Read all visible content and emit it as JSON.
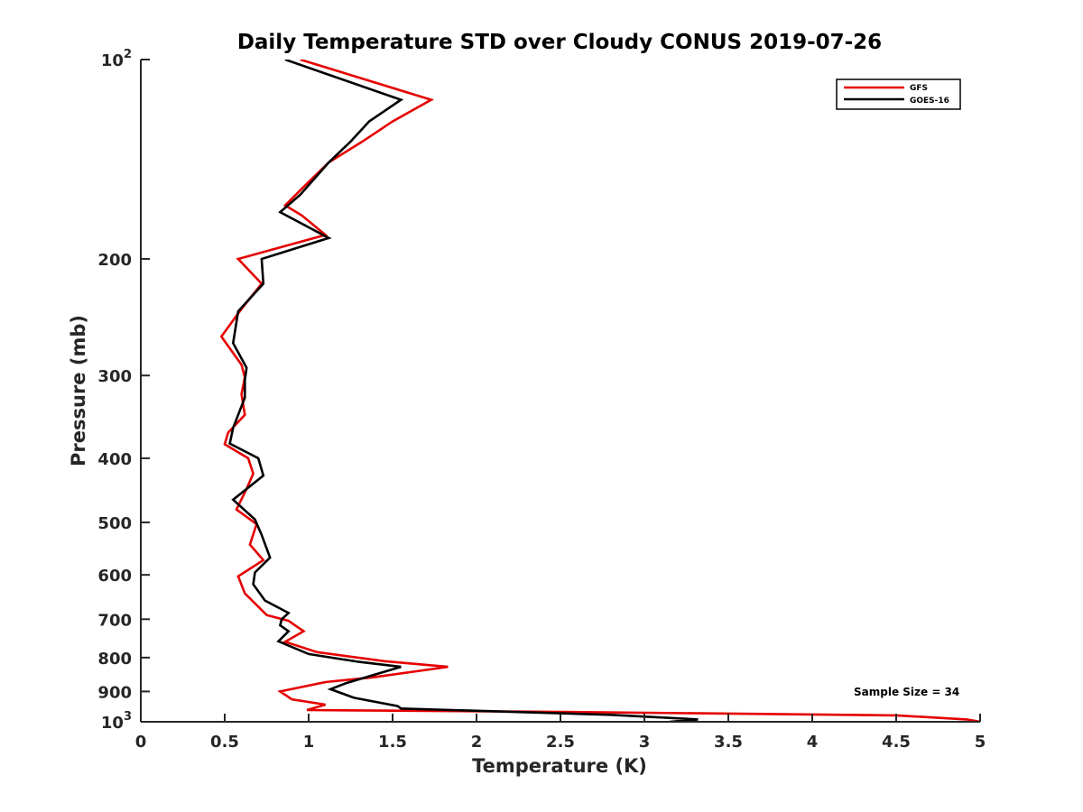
{
  "chart_data": {
    "type": "line",
    "title": "Daily Temperature STD over Cloudy CONUS 2019-07-26",
    "xlabel": "Temperature (K)",
    "ylabel": "Pressure (mb)",
    "xlim": [
      0,
      5
    ],
    "ylim": [
      100,
      1000
    ],
    "y_scale": "log",
    "y_reversed": true,
    "x_ticks": [
      0,
      0.5,
      1,
      1.5,
      2,
      2.5,
      3,
      3.5,
      4,
      4.5,
      5
    ],
    "x_tick_labels": [
      "0",
      "0.5",
      "1",
      "1.5",
      "2",
      "2.5",
      "3",
      "3.5",
      "4",
      "4.5",
      "5"
    ],
    "y_ticks": [
      100,
      200,
      300,
      400,
      500,
      600,
      700,
      800,
      900,
      1000
    ],
    "y_tick_labels": [
      {
        "base": "10",
        "exp": "2"
      },
      {
        "base": "200",
        "exp": ""
      },
      {
        "base": "300",
        "exp": ""
      },
      {
        "base": "400",
        "exp": ""
      },
      {
        "base": "500",
        "exp": ""
      },
      {
        "base": "600",
        "exp": ""
      },
      {
        "base": "700",
        "exp": ""
      },
      {
        "base": "800",
        "exp": ""
      },
      {
        "base": "900",
        "exp": ""
      },
      {
        "base": "10",
        "exp": "3"
      }
    ],
    "grid": false,
    "legend_position": "top-right",
    "annotation": "Sample Size = 34",
    "series": [
      {
        "name": "GFS",
        "color": "#e50000",
        "points": [
          [
            0.95,
            100
          ],
          [
            1.73,
            115
          ],
          [
            1.5,
            124
          ],
          [
            1.32,
            133
          ],
          [
            1.12,
            143
          ],
          [
            0.99,
            154
          ],
          [
            0.86,
            166
          ],
          [
            0.96,
            172
          ],
          [
            1.1,
            184
          ],
          [
            0.58,
            200
          ],
          [
            0.72,
            218
          ],
          [
            0.6,
            238
          ],
          [
            0.48,
            262
          ],
          [
            0.6,
            289
          ],
          [
            0.62,
            302
          ],
          [
            0.6,
            320
          ],
          [
            0.62,
            344
          ],
          [
            0.52,
            366
          ],
          [
            0.5,
            381
          ],
          [
            0.64,
            400
          ],
          [
            0.67,
            422
          ],
          [
            0.63,
            445
          ],
          [
            0.57,
            478
          ],
          [
            0.69,
            503
          ],
          [
            0.65,
            540
          ],
          [
            0.73,
            570
          ],
          [
            0.58,
            603
          ],
          [
            0.62,
            640
          ],
          [
            0.75,
            690
          ],
          [
            0.88,
            704
          ],
          [
            0.97,
            730
          ],
          [
            0.86,
            757
          ],
          [
            1.05,
            785
          ],
          [
            1.45,
            810
          ],
          [
            1.83,
            826
          ],
          [
            1.38,
            857
          ],
          [
            1.1,
            871
          ],
          [
            0.83,
            900
          ],
          [
            0.9,
            925
          ],
          [
            1.1,
            942
          ],
          [
            0.99,
            960
          ],
          [
            2.5,
            966
          ],
          [
            4.5,
            978
          ],
          [
            4.92,
            992
          ],
          [
            5.0,
            1000
          ]
        ]
      },
      {
        "name": "GOES-16",
        "color": "#000000",
        "points": [
          [
            0.86,
            100
          ],
          [
            1.55,
            115
          ],
          [
            1.36,
            124
          ],
          [
            1.25,
            133
          ],
          [
            1.12,
            143
          ],
          [
            0.95,
            160
          ],
          [
            0.83,
            170
          ],
          [
            1.12,
            186
          ],
          [
            0.72,
            200
          ],
          [
            0.73,
            218
          ],
          [
            0.58,
            240
          ],
          [
            0.55,
            268
          ],
          [
            0.63,
            292
          ],
          [
            0.62,
            305
          ],
          [
            0.62,
            324
          ],
          [
            0.55,
            360
          ],
          [
            0.53,
            380
          ],
          [
            0.7,
            400
          ],
          [
            0.73,
            425
          ],
          [
            0.55,
            462
          ],
          [
            0.68,
            495
          ],
          [
            0.72,
            522
          ],
          [
            0.77,
            565
          ],
          [
            0.68,
            595
          ],
          [
            0.67,
            620
          ],
          [
            0.74,
            656
          ],
          [
            0.88,
            685
          ],
          [
            0.84,
            700
          ],
          [
            0.83,
            715
          ],
          [
            0.88,
            730
          ],
          [
            0.82,
            756
          ],
          [
            1.0,
            790
          ],
          [
            1.3,
            812
          ],
          [
            1.55,
            826
          ],
          [
            1.4,
            848
          ],
          [
            1.22,
            875
          ],
          [
            1.13,
            893
          ],
          [
            1.27,
            920
          ],
          [
            1.53,
            947
          ],
          [
            1.55,
            955
          ],
          [
            2.8,
            976
          ],
          [
            3.32,
            992
          ],
          [
            3.15,
            1000
          ]
        ]
      }
    ]
  }
}
